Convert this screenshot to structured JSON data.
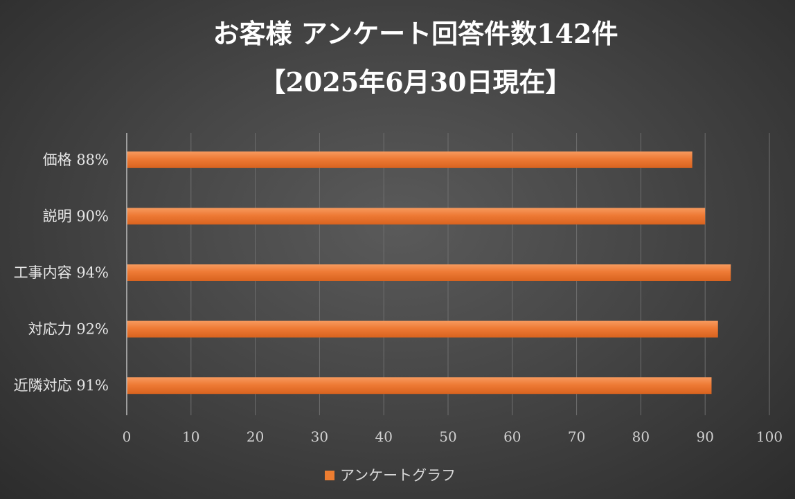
{
  "chart_data": {
    "type": "bar",
    "orientation": "horizontal",
    "title": [
      "お客様 アンケート回答件数142件",
      "【2025年6月30日現在】"
    ],
    "categories": [
      "価格 88%",
      "説明 90%",
      "工事内容 94%",
      "対応力 92%",
      "近隣対応 91%"
    ],
    "series": [
      {
        "name": "アンケートグラフ",
        "values": [
          88,
          90,
          94,
          92,
          91
        ],
        "color": "#ED7D31"
      }
    ],
    "xlim": [
      0,
      100
    ],
    "xticks": [
      0,
      10,
      20,
      30,
      40,
      50,
      60,
      70,
      80,
      90,
      100
    ],
    "grid": true,
    "legend_position": "bottom"
  }
}
